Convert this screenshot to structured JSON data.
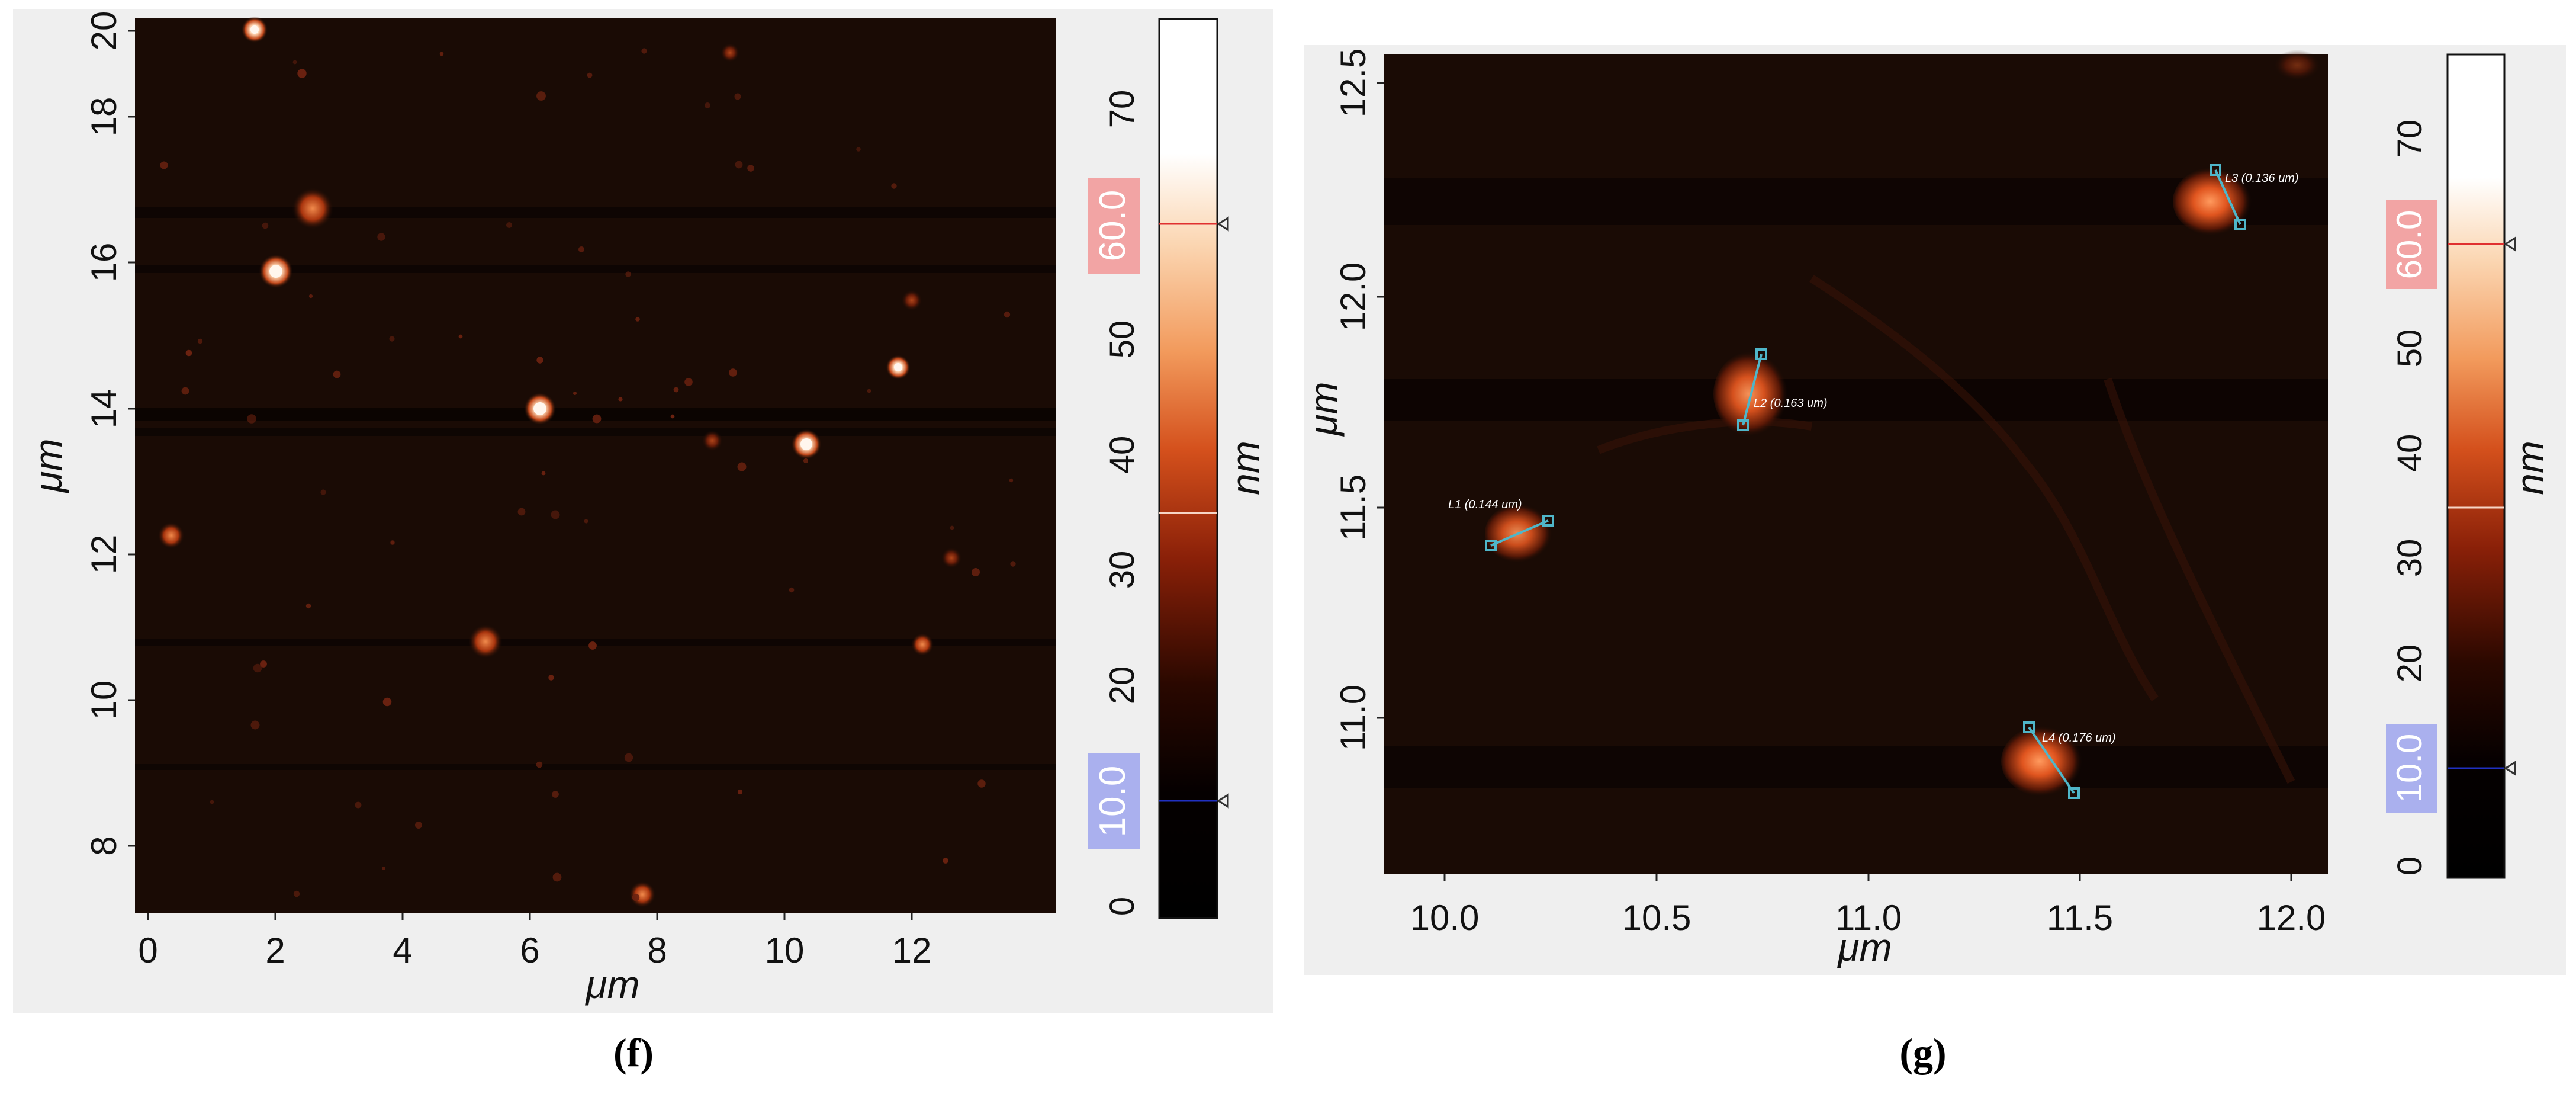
{
  "panels": [
    {
      "id": "f",
      "caption": "(f)",
      "x_axis": {
        "label": "μm",
        "ticks": [
          "0",
          "2",
          "4",
          "6",
          "8",
          "10",
          "12"
        ]
      },
      "y_axis": {
        "label": "μm",
        "ticks": [
          "8",
          "10",
          "12",
          "14",
          "16",
          "18",
          "20"
        ]
      },
      "colorbar": {
        "unit": "nm",
        "ticks": [
          "0",
          "10",
          "20",
          "30",
          "40",
          "50",
          "60",
          "70"
        ],
        "high_marker": "60.0",
        "low_marker": "10.0"
      }
    },
    {
      "id": "g",
      "caption": "(g)",
      "x_axis": {
        "label": "μm",
        "ticks": [
          "10.0",
          "10.5",
          "11.0",
          "11.5",
          "12.0"
        ]
      },
      "y_axis": {
        "label": "μm",
        "ticks": [
          "11.0",
          "11.5",
          "12.0",
          "12.5"
        ]
      },
      "colorbar": {
        "unit": "nm",
        "ticks": [
          "0",
          "10",
          "20",
          "30",
          "40",
          "50",
          "60",
          "70"
        ],
        "high_marker": "60.0",
        "low_marker": "10.0"
      },
      "measurements": [
        {
          "label": "L1 (0.144 um)"
        },
        {
          "label": "L2 (0.163 um)"
        },
        {
          "label": "L3 (0.136 um)"
        },
        {
          "label": "L4 (0.176 um)"
        }
      ]
    }
  ],
  "colors": {
    "panel_bg": "#efefef",
    "image_bg": "#1a0b05",
    "high_marker_bg": "#f2a4a4",
    "low_marker_bg": "#aab0ee",
    "measure_line": "#4fb6c9"
  }
}
